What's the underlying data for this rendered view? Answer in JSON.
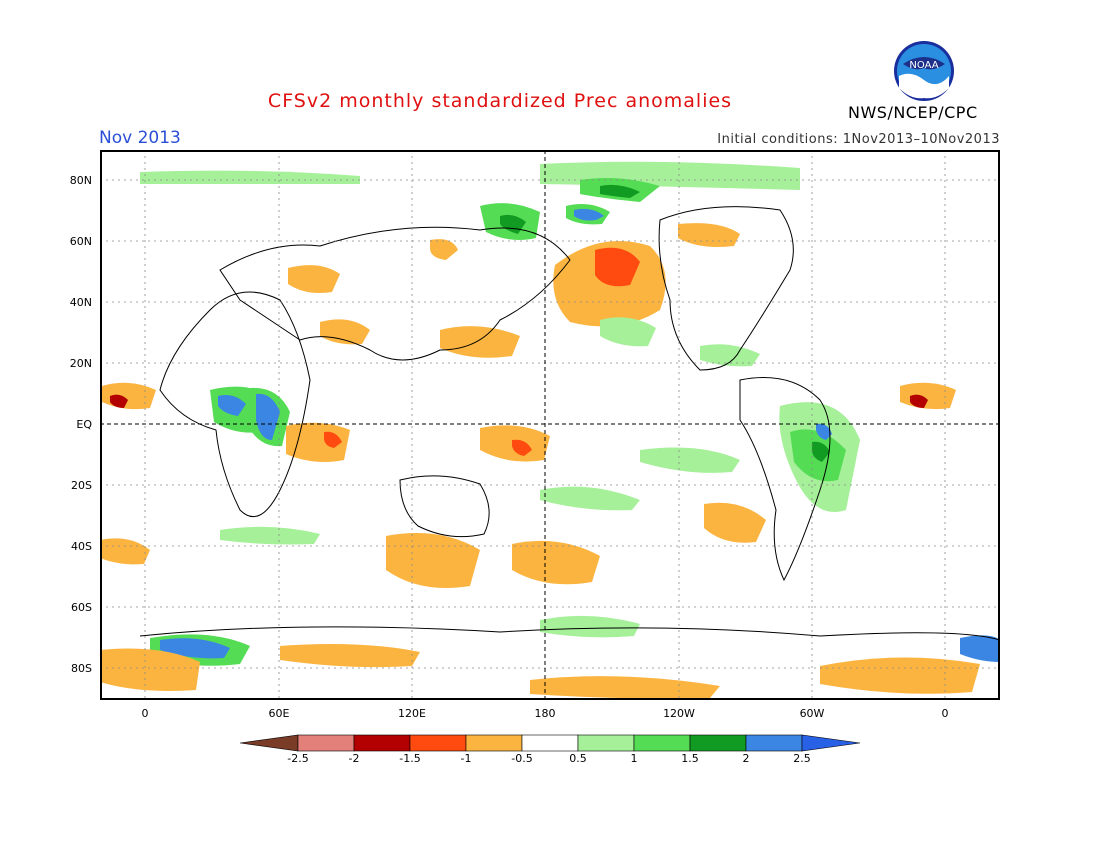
{
  "header": {
    "title": "CFSv2 monthly standardized Prec anomalies",
    "month": "Nov 2013",
    "initial_conditions": "Initial conditions: 1Nov2013–10Nov2013",
    "agency": "NWS/NCEP/CPC",
    "logo_text": "NOAA"
  },
  "map": {
    "lat_labels": [
      "80N",
      "60N",
      "40N",
      "20N",
      "EQ",
      "20S",
      "40S",
      "60S",
      "80S"
    ],
    "lon_labels": [
      "0",
      "60E",
      "120E",
      "180",
      "120W",
      "60W",
      "0"
    ]
  },
  "colorbar": {
    "labels": [
      "-2.5",
      "-2",
      "-1.5",
      "-1",
      "-0.5",
      "0.5",
      "1",
      "1.5",
      "2",
      "2.5"
    ],
    "colors": [
      "#7a3b27",
      "#e3807a",
      "#b30000",
      "#ff4a10",
      "#fbb440",
      "#ffffff",
      "#a6f09a",
      "#55dc55",
      "#129b22",
      "#3b86e3",
      "#2860e6"
    ]
  }
}
